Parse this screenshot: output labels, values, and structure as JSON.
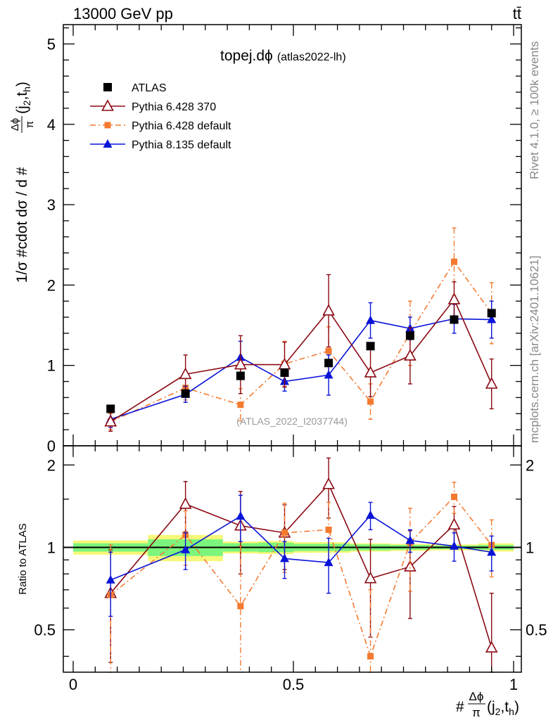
{
  "header": {
    "collision": "13000 GeV pp",
    "process": "tt̄"
  },
  "side_text": {
    "rivet": "Rivet 4.1.0, ≥ 100k events",
    "mcplots": "mcplots.cern.ch [arXiv:2401.10621]"
  },
  "colors": {
    "atlas": "#000000",
    "py6_370": "#8b0a14",
    "py6_default": "#f47a30",
    "py8_default": "#0a14d8",
    "band_inner": "#7cf57c",
    "band_outer": "#f7f77a"
  },
  "chart_data": [
    {
      "type": "scatter",
      "panel": "main",
      "title": "topej.dϕ",
      "subtitle": "(atlas2022-lh)",
      "watermark": "(ATLAS_2022_I2037744)",
      "ylabel": "1/σ #cdot dσ / d #(Δϕ/π)(j2,th)",
      "ylabel_parts": {
        "pre": "1/σ #cdot dσ / d #",
        "num": "Δϕ",
        "den": "π",
        "post": "(j",
        "sub1": "2",
        "mid": ",t",
        "sub2": "h",
        "end": ")"
      },
      "xlim": [
        0,
        1
      ],
      "ylim": [
        0,
        5.25
      ],
      "yticks": [
        0,
        1,
        2,
        3,
        4,
        5
      ],
      "ytick_labels": [
        "0",
        "1",
        "2",
        "3",
        "4",
        "5"
      ],
      "legend_position": "top-left",
      "x": [
        0.085,
        0.255,
        0.38,
        0.48,
        0.58,
        0.675,
        0.765,
        0.865,
        0.95
      ],
      "series": [
        {
          "name": "ATLAS",
          "key": "atlas",
          "marker": "square",
          "line": "none",
          "values": [
            0.46,
            0.65,
            0.87,
            0.91,
            1.03,
            1.24,
            1.37,
            1.57,
            1.65
          ]
        },
        {
          "name": "Pythia 6.428 370",
          "key": "py6_370",
          "marker": "open-triangle",
          "line": "solid",
          "values": [
            0.3,
            0.89,
            1.01,
            1.01,
            1.68,
            0.91,
            1.12,
            1.82,
            0.77
          ],
          "errors": [
            0.12,
            0.24,
            0.36,
            0.28,
            0.45,
            0.3,
            0.35,
            0.22,
            0.31
          ]
        },
        {
          "name": "Pythia 6.428 default",
          "key": "py6_default",
          "marker": "filled-square-small",
          "line": "dashdot",
          "values": [
            0.3,
            0.72,
            0.51,
            1.02,
            1.18,
            0.55,
            1.4,
            2.29,
            1.65
          ],
          "errors": [
            0.1,
            0.15,
            0.2,
            0.28,
            0.3,
            0.22,
            0.4,
            0.42,
            0.38
          ]
        },
        {
          "name": "Pythia 8.135 default",
          "key": "py8_default",
          "marker": "filled-triangle",
          "line": "solid",
          "values": [
            0.33,
            0.64,
            1.1,
            0.8,
            0.88,
            1.56,
            1.46,
            1.58,
            1.57
          ],
          "errors": [
            0.1,
            0.1,
            0.2,
            0.12,
            0.25,
            0.22,
            0.14,
            0.18,
            0.23
          ]
        }
      ]
    },
    {
      "type": "scatter",
      "panel": "ratio",
      "ylabel": "Ratio to ATLAS",
      "xlabel_parts": {
        "pre": "#",
        "num": "Δϕ",
        "den": "π",
        "post": "(j",
        "sub1": "2",
        "mid": ",t",
        "sub2": "h",
        "end": ")"
      },
      "xlim": [
        0,
        1
      ],
      "ylim": [
        0.35,
        2.35
      ],
      "xticks": [
        0,
        0.5,
        1
      ],
      "xtick_labels": [
        "0",
        "0.5",
        "1"
      ],
      "yticks": [
        0.5,
        1,
        2
      ],
      "ytick_labels": [
        "0.5",
        "1",
        "2"
      ],
      "reference": 1,
      "bands": {
        "bin_edges": [
          0,
          0.17,
          0.34,
          0.42,
          0.5,
          0.63,
          0.72,
          0.81,
          0.92,
          1.0
        ],
        "inner": [
          [
            0.965,
            1.035
          ],
          [
            0.93,
            1.07
          ],
          [
            0.965,
            1.035
          ],
          [
            0.96,
            1.04
          ],
          [
            0.97,
            1.03
          ],
          [
            0.975,
            1.025
          ],
          [
            0.98,
            1.02
          ],
          [
            0.985,
            1.015
          ],
          [
            0.98,
            1.02
          ]
        ],
        "outer": [
          [
            0.94,
            1.06
          ],
          [
            0.89,
            1.11
          ],
          [
            0.95,
            1.05
          ],
          [
            0.945,
            1.055
          ],
          [
            0.955,
            1.045
          ],
          [
            0.965,
            1.035
          ],
          [
            0.97,
            1.03
          ],
          [
            0.975,
            1.025
          ],
          [
            0.965,
            1.035
          ]
        ]
      },
      "series": [
        {
          "name": "Pythia 6.428 370",
          "key": "py6_370",
          "values": [
            0.68,
            1.44,
            1.2,
            1.13,
            1.7,
            0.77,
            0.85,
            1.21,
            0.43
          ],
          "errors": [
            0.3,
            0.3,
            0.4,
            0.3,
            0.42,
            0.3,
            0.3,
            0.2,
            0.25
          ]
        },
        {
          "name": "Pythia 6.428 default",
          "key": "py6_default",
          "values": [
            0.67,
            1.11,
            0.61,
            1.13,
            1.16,
            0.4,
            1.04,
            1.53,
            1.02
          ],
          "errors": [
            0.35,
            0.25,
            0.4,
            0.32,
            0.3,
            0.3,
            0.35,
            0.2,
            0.24
          ]
        },
        {
          "name": "Pythia 8.135 default",
          "key": "py8_default",
          "values": [
            0.76,
            0.98,
            1.3,
            0.91,
            0.88,
            1.31,
            1.06,
            1.01,
            0.96
          ],
          "errors": [
            0.2,
            0.15,
            0.25,
            0.14,
            0.2,
            0.15,
            0.1,
            0.12,
            0.14
          ]
        }
      ]
    }
  ]
}
